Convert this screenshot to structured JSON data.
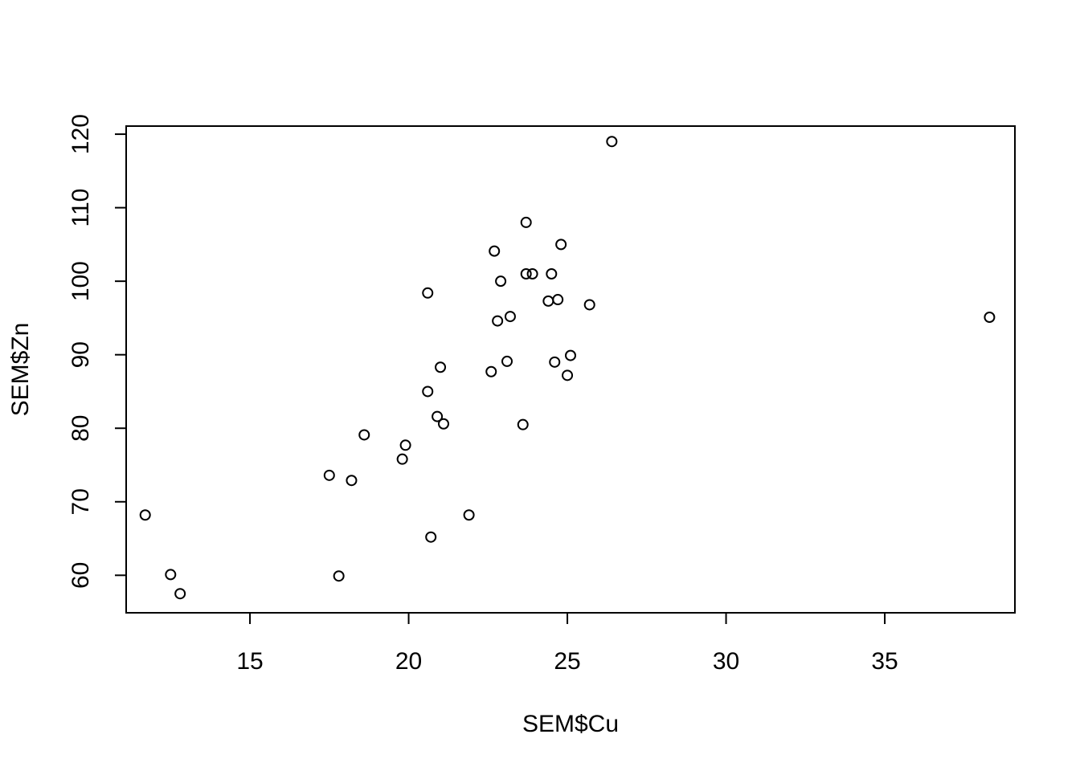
{
  "chart_data": {
    "type": "scatter",
    "title": "",
    "xlabel": "SEM$Cu",
    "ylabel": "SEM$Zn",
    "xlim": [
      11.1,
      39.1
    ],
    "ylim": [
      54.9,
      121.1
    ],
    "x_ticks": [
      15,
      20,
      25,
      30,
      35
    ],
    "y_ticks": [
      60,
      70,
      80,
      90,
      100,
      110,
      120
    ],
    "grid": false,
    "legend": "none",
    "marker": "open-circle",
    "colors": {
      "point_stroke": "#000000",
      "axis": "#000000",
      "background": "#ffffff"
    },
    "points": [
      {
        "x": 11.7,
        "y": 68.2
      },
      {
        "x": 12.5,
        "y": 60.1
      },
      {
        "x": 12.8,
        "y": 57.5
      },
      {
        "x": 17.5,
        "y": 73.6
      },
      {
        "x": 17.8,
        "y": 59.9
      },
      {
        "x": 18.2,
        "y": 72.9
      },
      {
        "x": 18.6,
        "y": 79.1
      },
      {
        "x": 19.8,
        "y": 75.8
      },
      {
        "x": 19.9,
        "y": 77.7
      },
      {
        "x": 20.6,
        "y": 98.4
      },
      {
        "x": 20.6,
        "y": 85.0
      },
      {
        "x": 20.7,
        "y": 65.2
      },
      {
        "x": 20.9,
        "y": 81.6
      },
      {
        "x": 21.0,
        "y": 88.3
      },
      {
        "x": 21.1,
        "y": 80.6
      },
      {
        "x": 21.9,
        "y": 68.2
      },
      {
        "x": 22.6,
        "y": 87.7
      },
      {
        "x": 22.7,
        "y": 104.1
      },
      {
        "x": 22.8,
        "y": 94.6
      },
      {
        "x": 22.9,
        "y": 100.0
      },
      {
        "x": 23.1,
        "y": 89.1
      },
      {
        "x": 23.2,
        "y": 95.2
      },
      {
        "x": 23.6,
        "y": 80.5
      },
      {
        "x": 23.7,
        "y": 108.0
      },
      {
        "x": 23.7,
        "y": 101.0
      },
      {
        "x": 23.9,
        "y": 101.0
      },
      {
        "x": 24.4,
        "y": 97.3
      },
      {
        "x": 24.5,
        "y": 101.0
      },
      {
        "x": 24.6,
        "y": 89.0
      },
      {
        "x": 24.7,
        "y": 97.5
      },
      {
        "x": 24.8,
        "y": 105.0
      },
      {
        "x": 25.0,
        "y": 87.2
      },
      {
        "x": 25.1,
        "y": 89.9
      },
      {
        "x": 25.7,
        "y": 96.8
      },
      {
        "x": 26.4,
        "y": 119.0
      },
      {
        "x": 38.3,
        "y": 95.1
      }
    ]
  }
}
